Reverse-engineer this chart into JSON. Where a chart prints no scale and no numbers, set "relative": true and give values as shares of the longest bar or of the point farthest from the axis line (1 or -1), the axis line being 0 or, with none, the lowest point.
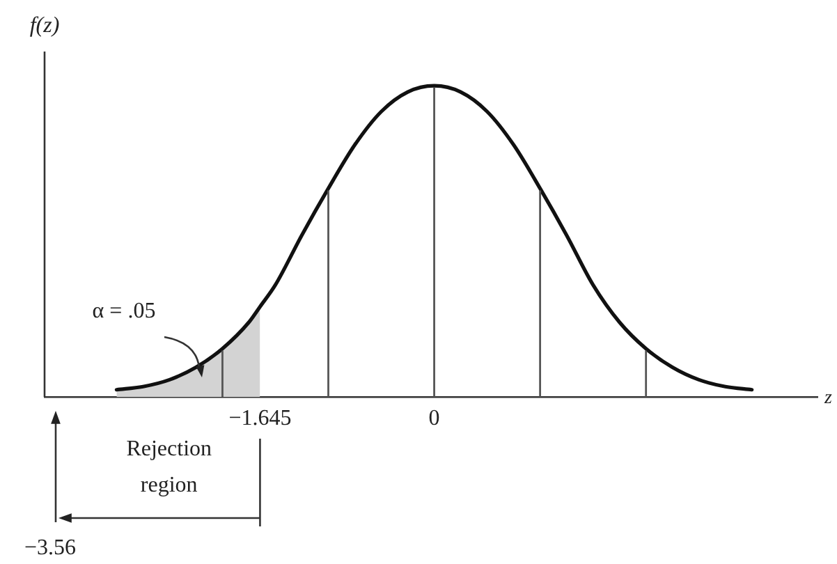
{
  "chart_data": {
    "type": "line",
    "xlabel": "z",
    "ylabel": "f(z)",
    "relative": true,
    "xlim": [
      -3.68,
      3.62
    ],
    "xticks": [
      {
        "value": -1.645,
        "label": "−1.645"
      },
      0
    ],
    "series": [
      {
        "x": [
          -3,
          -2.75,
          -2.5,
          -2.25,
          -2,
          -1.75,
          -1.645,
          -1.5,
          -1.25,
          -1,
          -0.75,
          -0.5,
          -0.25,
          0,
          0.25,
          0.5,
          0.75,
          1,
          1.25,
          1.5,
          1.75,
          2,
          2.25,
          2.5,
          2.75,
          3
        ],
        "values": [
          0.023,
          0.033,
          0.055,
          0.095,
          0.155,
          0.24,
          0.29,
          0.36,
          0.52,
          0.67,
          0.81,
          0.917,
          0.98,
          1,
          0.98,
          0.917,
          0.81,
          0.67,
          0.52,
          0.36,
          0.24,
          0.155,
          0.095,
          0.055,
          0.033,
          0.023
        ],
        "color": "#111111"
      },
      {
        "type": "area",
        "x": [
          -3,
          -2.75,
          -2.5,
          -2.25,
          -2,
          -1.75,
          -1.645
        ],
        "values": [
          0.023,
          0.033,
          0.055,
          0.095,
          0.155,
          0.24,
          0.29
        ],
        "color": "#d3d3d3"
      }
    ],
    "ref_lines": [
      {
        "axis": "x",
        "value": -2,
        "color": "#555555"
      },
      {
        "axis": "x",
        "value": -1,
        "color": "#555555"
      },
      {
        "axis": "x",
        "value": 0,
        "color": "#555555"
      },
      {
        "axis": "x",
        "value": 1,
        "color": "#555555"
      },
      {
        "axis": "x",
        "value": 2,
        "color": "#555555"
      }
    ],
    "annotations": [
      "α = .05",
      "Rejection region",
      "−3.56"
    ],
    "grid": false,
    "legend": false,
    "marker": "none",
    "line_style": "solid"
  }
}
